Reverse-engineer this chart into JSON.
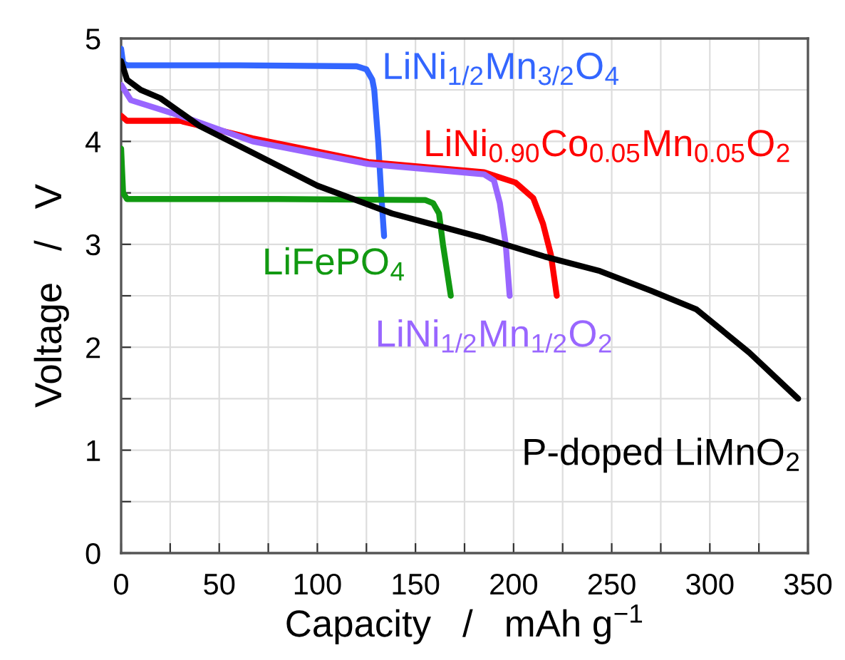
{
  "chart_data": {
    "type": "line",
    "xlabel": "Capacity   /   mAh g$^{−1}$",
    "ylabel": "Voltage   /   V",
    "xlim": [
      0,
      350
    ],
    "ylim": [
      0,
      5
    ],
    "xticks": [
      0,
      {
        "value": 25,
        "label": null
      },
      50,
      {
        "value": 75,
        "label": null
      },
      100,
      {
        "value": 125,
        "label": null
      },
      150,
      {
        "value": 175,
        "label": null
      },
      200,
      {
        "value": 225,
        "label": null
      },
      250,
      {
        "value": 275,
        "label": null
      },
      300,
      {
        "value": 325,
        "label": null
      },
      350
    ],
    "yticks": [
      0,
      {
        "value": 0.5,
        "label": null
      },
      1,
      {
        "value": 1.5,
        "label": null
      },
      2,
      {
        "value": 2.5,
        "label": null
      },
      3,
      {
        "value": 3.5,
        "label": null
      },
      4,
      {
        "value": 4.5,
        "label": null
      },
      5
    ],
    "grid": true,
    "legend": false,
    "marker": "none",
    "line_style": "solid",
    "series": [
      {
        "name": "LiNi$_{1/2}$Mn$_{3/2}$O$_{4}$",
        "color": "#3366ff",
        "x": [
          0,
          1,
          3,
          60,
          120,
          125,
          128,
          129,
          131,
          132.5,
          134
        ],
        "values": [
          4.9,
          4.76,
          4.74,
          4.74,
          4.73,
          4.7,
          4.6,
          4.5,
          4.0,
          3.5,
          3.08
        ]
      },
      {
        "name": "LiNi$_{0.90}$Co$_{0.05}$Mn$_{0.05}$O$_{2}$",
        "color": "#ff0000",
        "x": [
          0,
          3,
          30,
          67,
          126,
          185,
          201,
          210,
          215,
          219,
          222
        ],
        "values": [
          4.25,
          4.2,
          4.2,
          4.03,
          3.8,
          3.7,
          3.6,
          3.45,
          3.2,
          2.9,
          2.5
        ]
      },
      {
        "name": "LiFePO$_{4}$",
        "color": "#119911",
        "x": [
          0,
          1,
          3,
          80,
          155,
          159,
          162,
          164,
          166,
          168
        ],
        "values": [
          3.93,
          3.5,
          3.44,
          3.44,
          3.43,
          3.4,
          3.3,
          3.0,
          2.75,
          2.5
        ]
      },
      {
        "name": "LiNi$_{1/2}$Mn$_{1/2}$O$_{2}$",
        "color": "#9966ff",
        "x": [
          0,
          5,
          30,
          67,
          126,
          185,
          190,
          193,
          196,
          198
        ],
        "values": [
          4.55,
          4.4,
          4.25,
          4.0,
          3.78,
          3.68,
          3.62,
          3.4,
          3.0,
          2.5
        ]
      },
      {
        "name": "P-doped LiMnO$_{2}$",
        "color": "#000000",
        "x": [
          0,
          3,
          10,
          20,
          40,
          67,
          100,
          138,
          185,
          216,
          244,
          270,
          293,
          320,
          345
        ],
        "values": [
          4.78,
          4.6,
          4.5,
          4.42,
          4.15,
          3.89,
          3.57,
          3.3,
          3.06,
          2.88,
          2.74,
          2.55,
          2.37,
          1.95,
          1.5
        ]
      }
    ]
  }
}
